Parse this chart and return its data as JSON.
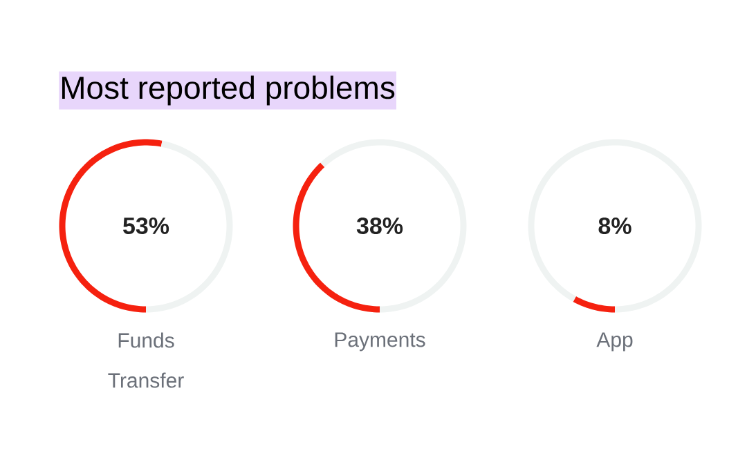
{
  "chart_data": [
    {
      "type": "donut",
      "title": "Most reported problems",
      "categories": [
        "Funds Transfer",
        null
      ],
      "values": [
        53,
        47
      ],
      "colors": [
        "#f5210f",
        "#eff3f2"
      ],
      "annotations": [
        "53%"
      ]
    },
    {
      "type": "donut",
      "categories": [
        "Payments",
        null
      ],
      "values": [
        38,
        62
      ],
      "colors": [
        "#f5210f",
        "#eff3f2"
      ],
      "annotations": [
        "38%"
      ]
    },
    {
      "type": "donut",
      "categories": [
        "App",
        null
      ],
      "values": [
        8,
        92
      ],
      "colors": [
        "#f5210f",
        "#eff3f2"
      ],
      "annotations": [
        "8%"
      ]
    }
  ]
}
